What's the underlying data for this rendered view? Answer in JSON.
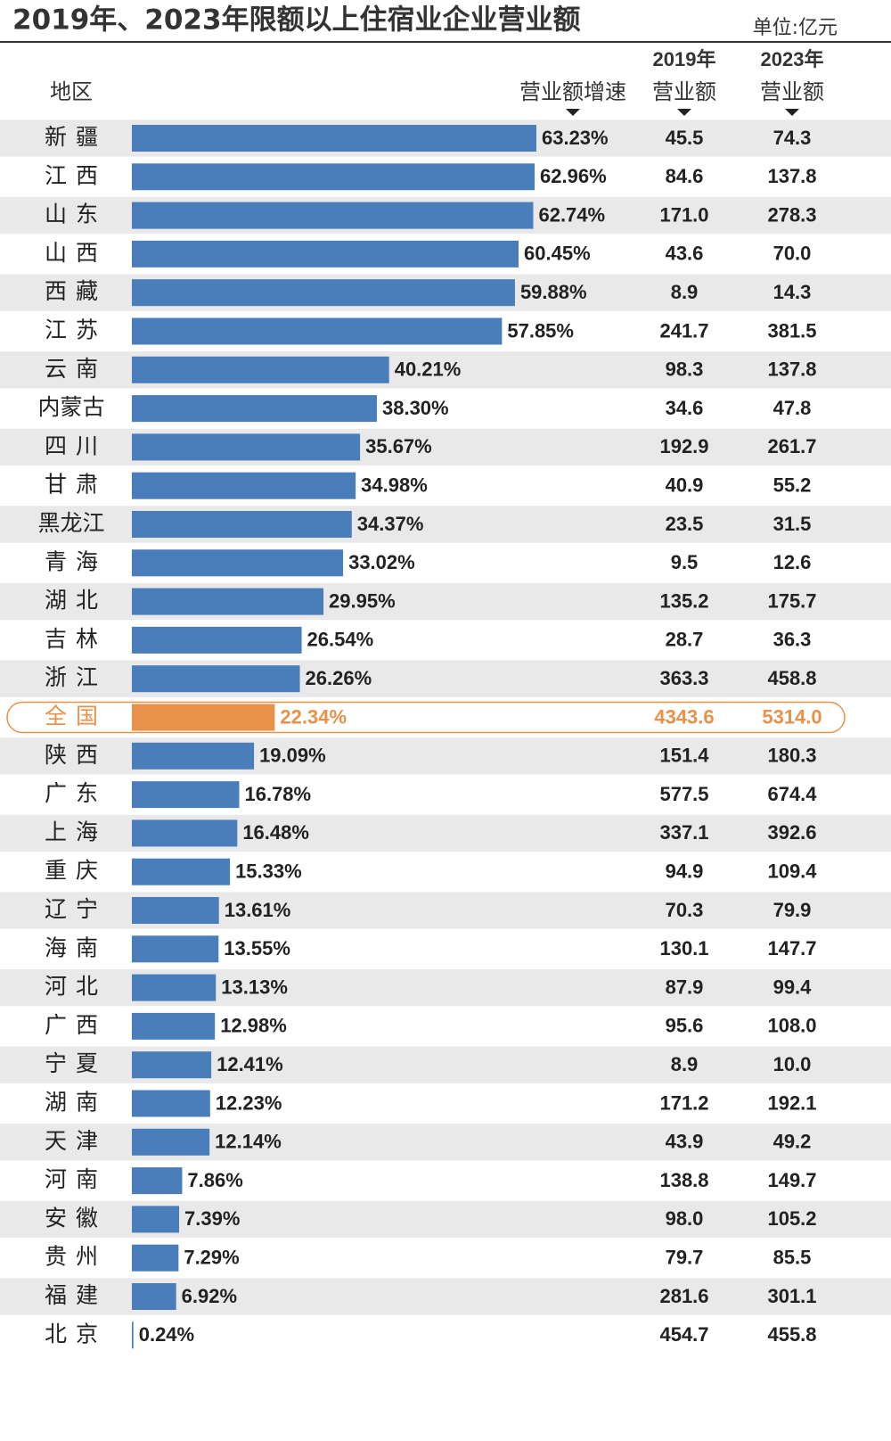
{
  "chart_data": {
    "type": "bar",
    "title": "2019年、2023年限额以上住宿业企业营业额",
    "unit": "单位:亿元",
    "category_header": "地区",
    "value_header": "营业额增速",
    "color": "#4a7ebb",
    "highlight": "全国",
    "highlight_color": "#e8914a",
    "categories": [
      "新疆",
      "江西",
      "山东",
      "山西",
      "西藏",
      "江苏",
      "云南",
      "内蒙古",
      "四川",
      "甘肃",
      "黑龙江",
      "青海",
      "湖北",
      "吉林",
      "浙江",
      "全国",
      "陕西",
      "广东",
      "上海",
      "重庆",
      "辽宁",
      "海南",
      "河北",
      "广西",
      "宁夏",
      "湖南",
      "天津",
      "河南",
      "安徽",
      "贵州",
      "福建",
      "北京"
    ],
    "values": [
      63.23,
      62.96,
      62.74,
      60.45,
      59.88,
      57.85,
      40.21,
      38.3,
      35.67,
      34.98,
      34.37,
      33.02,
      29.95,
      26.54,
      26.26,
      22.34,
      19.09,
      16.78,
      16.48,
      15.33,
      13.61,
      13.55,
      13.13,
      12.98,
      12.41,
      12.23,
      12.14,
      7.86,
      7.39,
      7.29,
      6.92,
      0.24
    ],
    "value_labels": [
      "63.23%",
      "62.96%",
      "62.74%",
      "60.45%",
      "59.88%",
      "57.85%",
      "40.21%",
      "38.30%",
      "35.67%",
      "34.98%",
      "34.37%",
      "33.02%",
      "29.95%",
      "26.54%",
      "26.26%",
      "22.34%",
      "19.09%",
      "16.78%",
      "16.48%",
      "15.33%",
      "13.61%",
      "13.55%",
      "13.13%",
      "12.98%",
      "12.41%",
      "12.23%",
      "12.14%",
      "7.86%",
      "7.39%",
      "7.29%",
      "6.92%",
      "0.24%"
    ],
    "columns": [
      {
        "year": "2019年",
        "label": "营业额",
        "values": [
          "45.5",
          "84.6",
          "171.0",
          "43.6",
          "8.9",
          "241.7",
          "98.3",
          "34.6",
          "192.9",
          "40.9",
          "23.5",
          "9.5",
          "135.2",
          "28.7",
          "363.3",
          "4343.6",
          "151.4",
          "577.5",
          "337.1",
          "94.9",
          "70.3",
          "130.1",
          "87.9",
          "95.6",
          "8.9",
          "171.2",
          "43.9",
          "138.8",
          "98.0",
          "79.7",
          "281.6",
          "454.7"
        ]
      },
      {
        "year": "2023年",
        "label": "营业额",
        "values": [
          "74.3",
          "137.8",
          "278.3",
          "70.0",
          "14.3",
          "381.5",
          "137.8",
          "47.8",
          "261.7",
          "55.2",
          "31.5",
          "12.6",
          "175.7",
          "36.3",
          "458.8",
          "5314.0",
          "180.3",
          "674.4",
          "392.6",
          "109.4",
          "79.9",
          "147.7",
          "99.4",
          "108.0",
          "10.0",
          "192.1",
          "49.2",
          "149.7",
          "105.2",
          "85.5",
          "301.1",
          "455.8"
        ]
      }
    ]
  }
}
